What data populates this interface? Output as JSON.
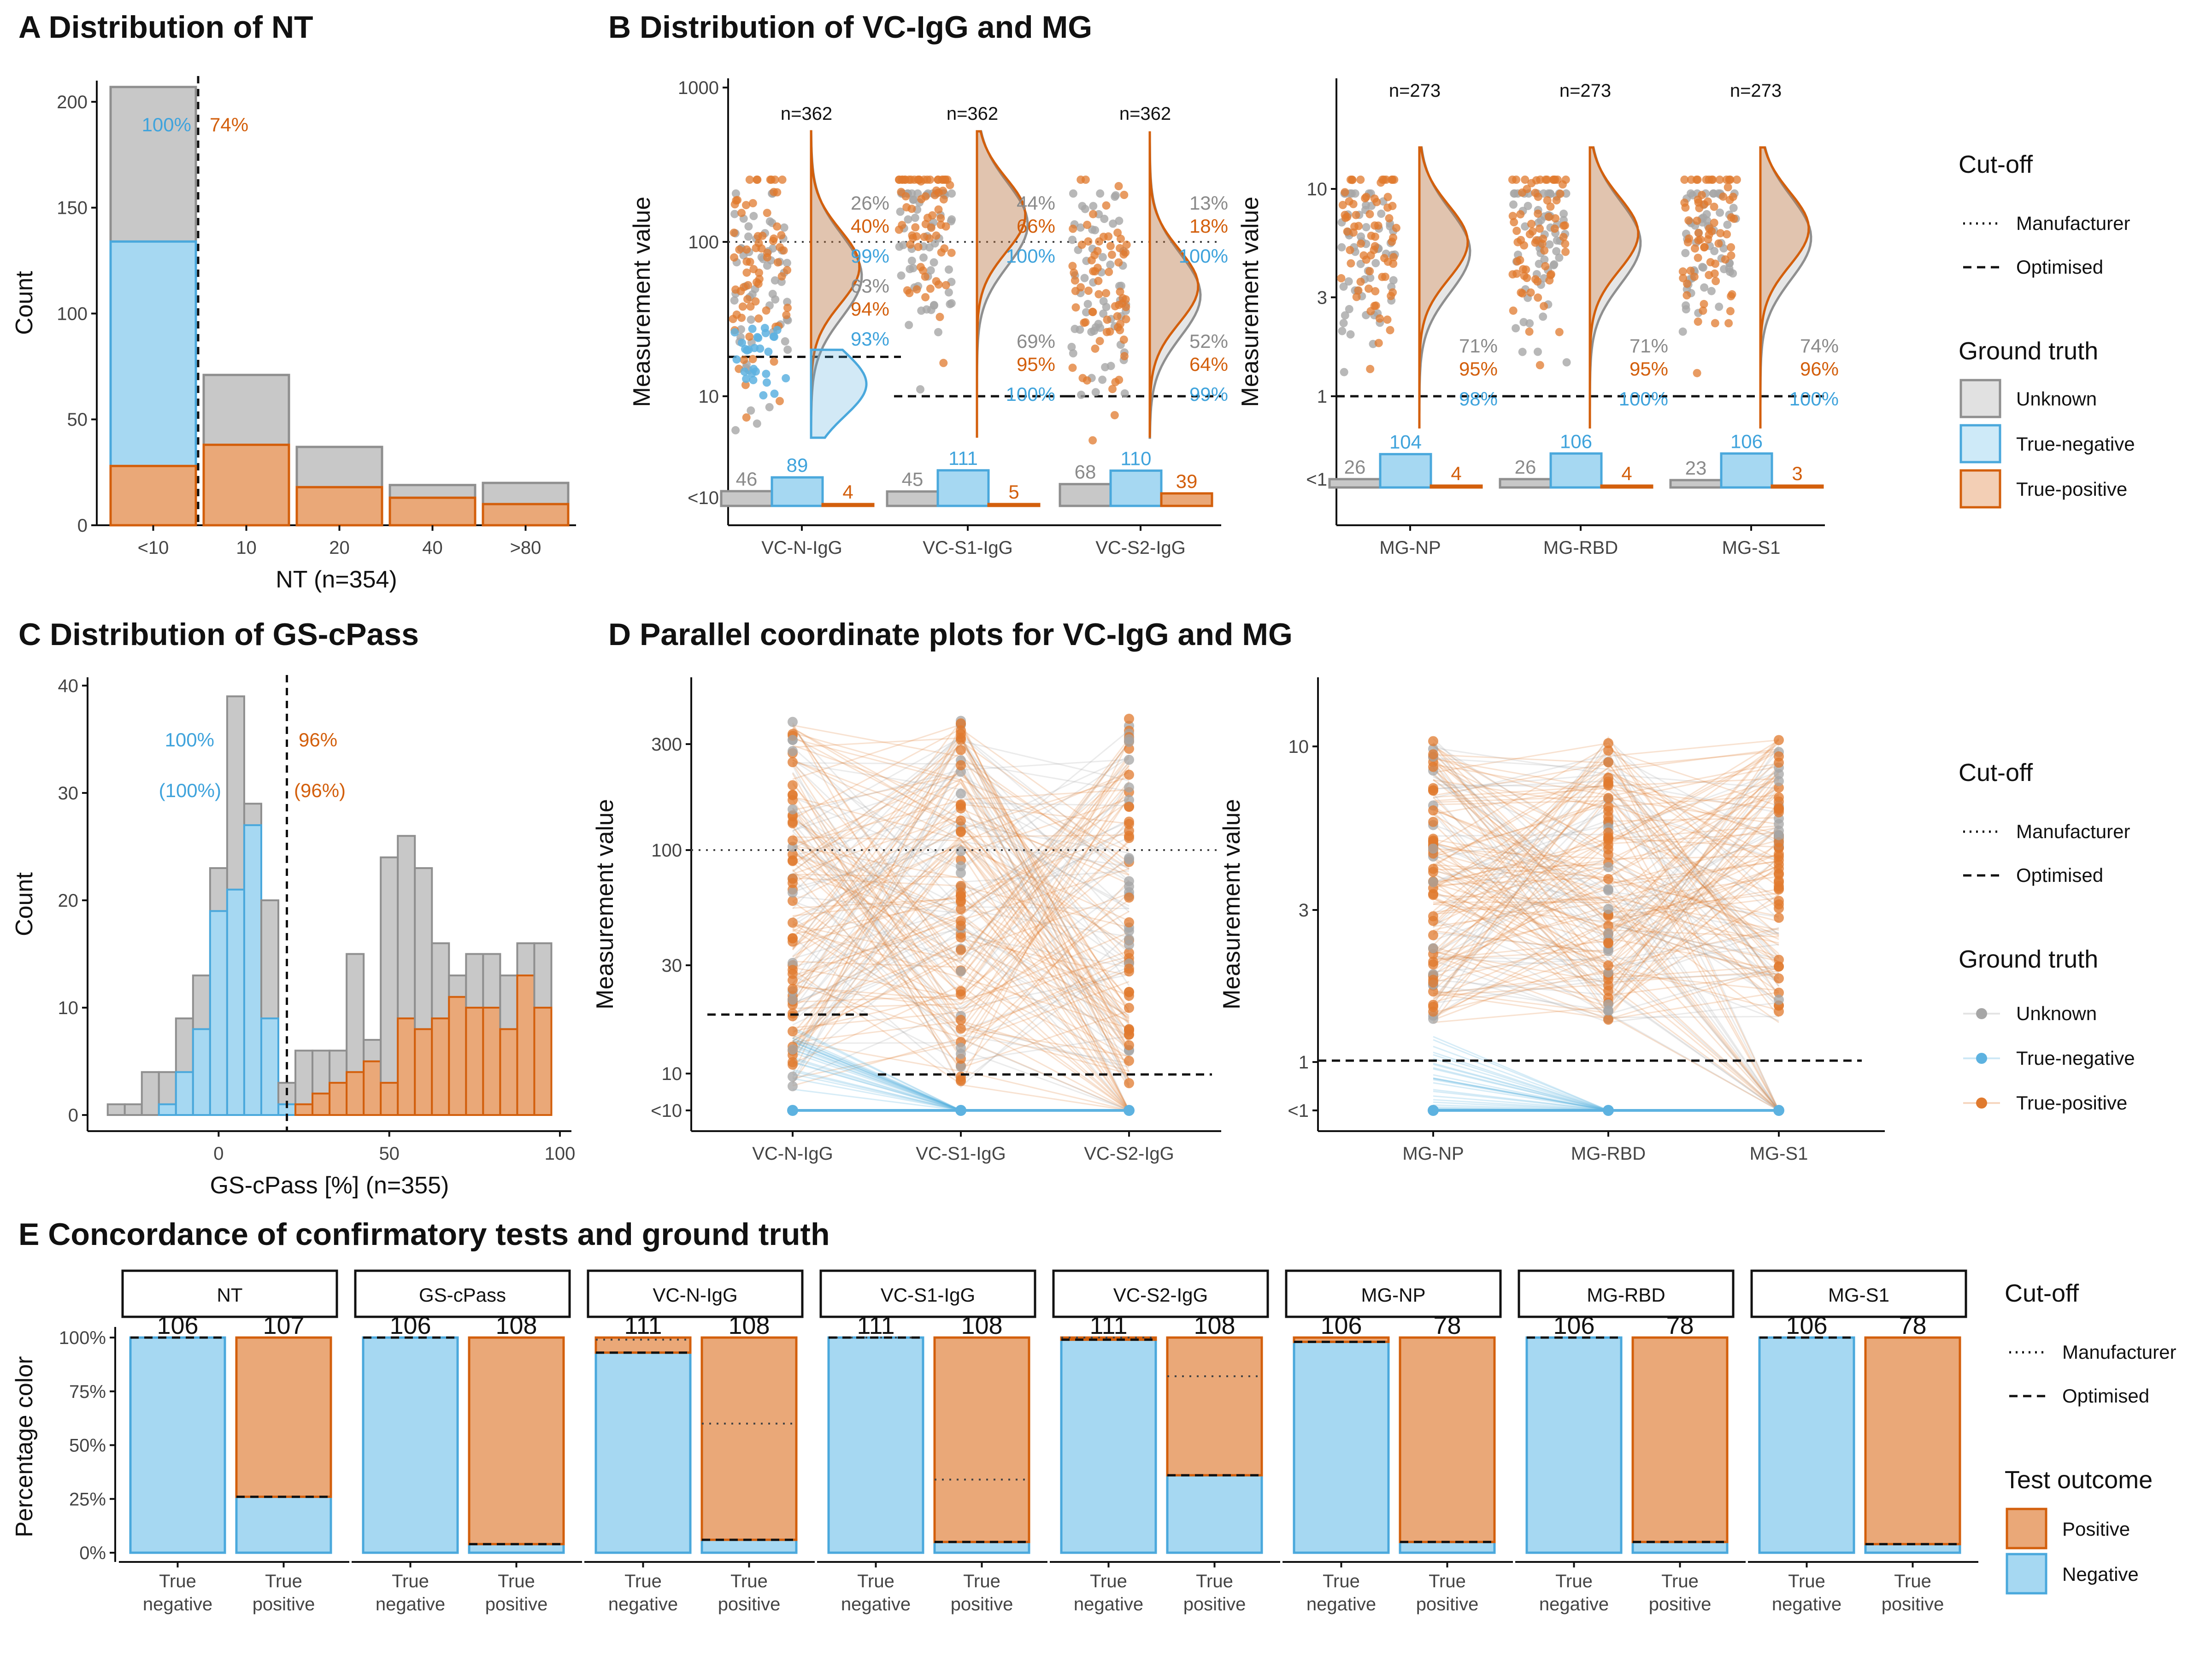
{
  "colors": {
    "unknown_fill": "#c8c8c8",
    "unknown_line": "#8f8f8f",
    "neg_fill": "#a6d8f2",
    "neg_line": "#4aa8dc",
    "pos_fill": "#eaa878",
    "pos_line": "#d35f0c",
    "pos_text": "#d35f0c",
    "neg_text": "#3fa3dc",
    "unk_text": "#8a8a8a",
    "point_unknown": "#a6a6a6",
    "point_pos": "#e07a2e",
    "point_neg": "#5db2e0"
  },
  "panels": {
    "A": {
      "title": "A Distribution of NT"
    },
    "B": {
      "title": "B Distribution of VC-IgG and MG"
    },
    "C": {
      "title": "C Distribution of GS-cPass"
    },
    "D": {
      "title": "D Parallel coordinate plots for VC-IgG and MG"
    },
    "E": {
      "title": "E Concordance of confirmatory tests and ground truth"
    }
  },
  "legends": {
    "cutoff": {
      "title": "Cut-off",
      "items": [
        "Manufacturer",
        "Optimised"
      ]
    },
    "ground_truth": {
      "title": "Ground truth",
      "items": [
        "Unknown",
        "True-negative",
        "True-positive"
      ]
    },
    "test_outcome": {
      "title": "Test outcome",
      "items": [
        "Positive",
        "Negative"
      ]
    }
  },
  "chart_data": [
    {
      "id": "A",
      "type": "bar",
      "stacked": true,
      "categories": [
        "<10",
        "10",
        "20",
        "40",
        ">80"
      ],
      "series": [
        {
          "name": "True-positive",
          "values": [
            28,
            38,
            18,
            13,
            10
          ]
        },
        {
          "name": "True-negative",
          "values": [
            106,
            0,
            0,
            0,
            0
          ]
        },
        {
          "name": "Unknown",
          "values": [
            73,
            33,
            19,
            6,
            10
          ]
        }
      ],
      "xlabel": "NT (n=354)",
      "ylabel": "Count",
      "ylim": [
        0,
        210
      ],
      "yticks": [
        0,
        50,
        100,
        150,
        200
      ],
      "annotations": {
        "neg": "100%",
        "pos": "74%"
      }
    },
    {
      "id": "B1",
      "type": "scatter",
      "categories": [
        "VC-N-IgG",
        "VC-S1-IgG",
        "VC-S2-IgG"
      ],
      "ylabel": "Measurement value",
      "yticks": [
        "<10",
        "10",
        "100",
        "1000"
      ],
      "n_labels": [
        "n=362",
        "n=362",
        "n=362"
      ],
      "cutoffs": {
        "manufacturer": [
          100,
          100,
          100
        ],
        "optimised": [
          18,
          10,
          10
        ]
      },
      "upper_pct": [
        {
          "unk": "26%",
          "pos": "40%",
          "neg": "99%"
        },
        {
          "unk": "44%",
          "pos": "66%",
          "neg": "100%"
        },
        {
          "unk": "13%",
          "pos": "18%",
          "neg": "100%"
        }
      ],
      "lower_pct": [
        {
          "unk": "63%",
          "pos": "94%",
          "neg": "93%"
        },
        {
          "unk": "69%",
          "pos": "95%",
          "neg": "100%"
        },
        {
          "unk": "52%",
          "pos": "64%",
          "neg": "99%"
        }
      ],
      "below_counts": [
        {
          "unk": 46,
          "neg": 89,
          "pos": 4
        },
        {
          "unk": 45,
          "neg": 111,
          "pos": 5
        },
        {
          "unk": 68,
          "neg": 110,
          "pos": 39
        }
      ]
    },
    {
      "id": "B2",
      "type": "scatter",
      "categories": [
        "MG-NP",
        "MG-RBD",
        "MG-S1"
      ],
      "ylabel": "Measurement value",
      "yticks": [
        "<1",
        "1",
        "3",
        "10"
      ],
      "n_labels": [
        "n=273",
        "n=273",
        "n=273"
      ],
      "cutoffs": {
        "optimised": [
          1,
          1,
          1
        ]
      },
      "lower_pct": [
        {
          "unk": "71%",
          "pos": "95%",
          "neg": "98%"
        },
        {
          "unk": "71%",
          "pos": "95%",
          "neg": "100%"
        },
        {
          "unk": "74%",
          "pos": "96%",
          "neg": "100%"
        }
      ],
      "below_counts": [
        {
          "unk": 26,
          "neg": 104,
          "pos": 4
        },
        {
          "unk": 26,
          "neg": 106,
          "pos": 4
        },
        {
          "unk": 23,
          "neg": 106,
          "pos": 3
        }
      ]
    },
    {
      "id": "C",
      "type": "bar",
      "stacked": true,
      "xlabel": "GS-cPass [%] (n=355)",
      "ylabel": "Count",
      "ylim": [
        0,
        40
      ],
      "yticks": [
        0,
        10,
        20,
        30,
        40
      ],
      "xticks": [
        "0",
        "50",
        "100"
      ],
      "bins_center": [
        -30,
        -25,
        -20,
        -15,
        -10,
        -5,
        0,
        5,
        10,
        15,
        20,
        25,
        30,
        35,
        40,
        45,
        50,
        55,
        60,
        65,
        70,
        75,
        80,
        85,
        90,
        95
      ],
      "neg_counts": [
        0,
        0,
        0,
        1,
        4,
        8,
        19,
        21,
        27,
        9,
        1,
        0,
        0,
        0,
        0,
        0,
        0,
        0,
        0,
        0,
        0,
        0,
        0,
        0,
        0,
        0
      ],
      "pos_counts": [
        0,
        0,
        0,
        0,
        0,
        0,
        0,
        0,
        0,
        0,
        0,
        1,
        2,
        3,
        4,
        5,
        3,
        9,
        8,
        9,
        11,
        10,
        10,
        8,
        13,
        10
      ],
      "total_counts": [
        1,
        1,
        4,
        4,
        9,
        13,
        23,
        39,
        29,
        20,
        3,
        6,
        6,
        6,
        15,
        7,
        24,
        26,
        23,
        16,
        13,
        15,
        15,
        13,
        16,
        16
      ],
      "annotations": {
        "neg": "100%",
        "neg_paren": "(100%)",
        "pos": "96%",
        "pos_paren": "(96%)"
      },
      "cutoff": 20
    },
    {
      "id": "D1",
      "type": "line",
      "categories": [
        "VC-N-IgG",
        "VC-S1-IgG",
        "VC-S2-IgG"
      ],
      "ylabel": "Measurement value",
      "yticks": [
        "<10",
        "10",
        "30",
        "100",
        "300"
      ],
      "cutoffs": {
        "manufacturer": 100,
        "optimised": [
          18,
          10,
          10
        ]
      }
    },
    {
      "id": "D2",
      "type": "line",
      "categories": [
        "MG-NP",
        "MG-RBD",
        "MG-S1"
      ],
      "ylabel": "Measurement value",
      "yticks": [
        "<1",
        "1",
        "3",
        "10"
      ],
      "cutoffs": {
        "optimised": 1
      }
    },
    {
      "id": "E",
      "type": "bar",
      "stacked": true,
      "ylabel": "Percentage color",
      "yticks": [
        "0%",
        "25%",
        "50%",
        "75%",
        "100%"
      ],
      "groups": [
        {
          "name": "NT",
          "counts": [
            "106",
            "107"
          ],
          "pos_frac": [
            0,
            0.74
          ],
          "manu": [
            null,
            null
          ],
          "opt": [
            1.0,
            0.26
          ]
        },
        {
          "name": "GS-cPass",
          "counts": [
            "106",
            "108"
          ],
          "pos_frac": [
            0,
            0.96
          ],
          "manu": [
            null,
            null
          ],
          "opt": [
            1.0,
            0.04
          ]
        },
        {
          "name": "VC-N-IgG",
          "counts": [
            "111",
            "108"
          ],
          "pos_frac": [
            0.07,
            0.94
          ],
          "manu": [
            0.99,
            0.6
          ],
          "opt": [
            0.93,
            0.06
          ]
        },
        {
          "name": "VC-S1-IgG",
          "counts": [
            "111",
            "108"
          ],
          "pos_frac": [
            0,
            0.95
          ],
          "manu": [
            1.0,
            0.34
          ],
          "opt": [
            1.0,
            0.05
          ]
        },
        {
          "name": "VC-S2-IgG",
          "counts": [
            "111",
            "108"
          ],
          "pos_frac": [
            0.01,
            0.64
          ],
          "manu": [
            1.0,
            0.82
          ],
          "opt": [
            0.99,
            0.36
          ]
        },
        {
          "name": "MG-NP",
          "counts": [
            "106",
            "78"
          ],
          "pos_frac": [
            0.02,
            0.95
          ],
          "manu": [
            null,
            null
          ],
          "opt": [
            0.98,
            0.05
          ]
        },
        {
          "name": "MG-RBD",
          "counts": [
            "106",
            "78"
          ],
          "pos_frac": [
            0,
            0.95
          ],
          "manu": [
            null,
            null
          ],
          "opt": [
            1.0,
            0.05
          ]
        },
        {
          "name": "MG-S1",
          "counts": [
            "106",
            "78"
          ],
          "pos_frac": [
            0,
            0.96
          ],
          "manu": [
            null,
            null
          ],
          "opt": [
            1.0,
            0.04
          ]
        }
      ],
      "x_labels": [
        [
          "True",
          "negative"
        ],
        [
          "True",
          "positive"
        ]
      ]
    }
  ]
}
